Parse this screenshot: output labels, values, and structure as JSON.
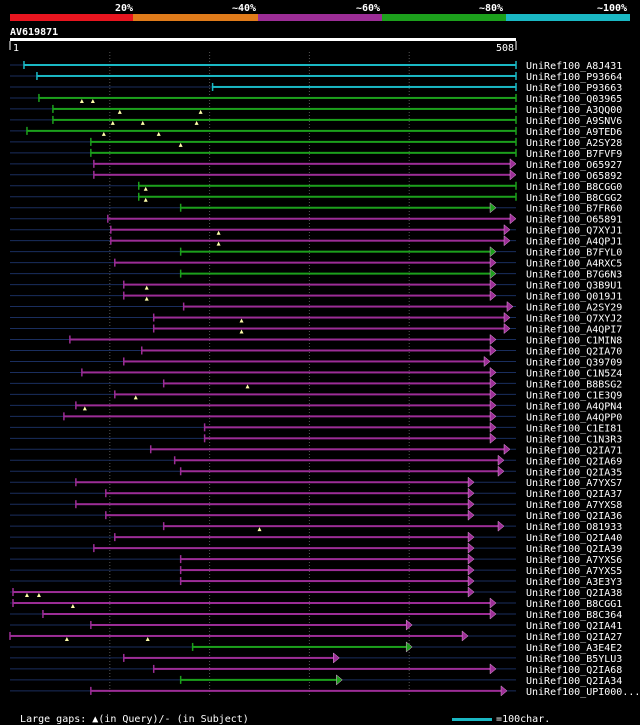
{
  "chart_data": {
    "type": "alignment",
    "query_id": "AV619871",
    "query_start": "1",
    "query_end": "508",
    "query_length": 508,
    "legend": [
      {
        "label": "20%",
        "color": "#e8151f"
      },
      {
        "label": "~40%",
        "color": "#e07b1a"
      },
      {
        "label": "~60%",
        "color": "#9c2d96"
      },
      {
        "label": "~80%",
        "color": "#1ca01c"
      },
      {
        "label": "~100%",
        "color": "#1ab8c4"
      }
    ],
    "colors": {
      "cyan": "#1ab8c4",
      "green": "#1ca01c",
      "purple": "#9c2d96",
      "track": "#1a2e5e",
      "gap": "#ffffaa",
      "axis": "#ffffff",
      "grid": "#555555"
    },
    "hits": [
      {
        "name": "UniRef100_A8J431",
        "start": 15,
        "end": 508,
        "color": "cyan",
        "arrow": false,
        "gaps": []
      },
      {
        "name": "UniRef100_P93664",
        "start": 28,
        "end": 508,
        "color": "cyan",
        "arrow": false,
        "gaps": []
      },
      {
        "name": "UniRef100_P93663",
        "start": 204,
        "end": 508,
        "color": "cyan",
        "arrow": false,
        "gaps": []
      },
      {
        "name": "UniRef100_Q03965",
        "start": 30,
        "end": 508,
        "color": "green",
        "arrow": false,
        "gaps": [
          73,
          84
        ]
      },
      {
        "name": "UniRef100_A3QQ00",
        "start": 44,
        "end": 508,
        "color": "green",
        "arrow": false,
        "gaps": [
          111,
          192
        ]
      },
      {
        "name": "UniRef100_A9SNV6",
        "start": 44,
        "end": 508,
        "color": "green",
        "arrow": false,
        "gaps": [
          104,
          134,
          188
        ]
      },
      {
        "name": "UniRef100_A9TED6",
        "start": 18,
        "end": 508,
        "color": "green",
        "arrow": false,
        "gaps": [
          95,
          150
        ]
      },
      {
        "name": "UniRef100_A2SY28",
        "start": 82,
        "end": 508,
        "color": "green",
        "arrow": false,
        "gaps": [
          172
        ]
      },
      {
        "name": "UniRef100_B7FVF9",
        "start": 82,
        "end": 508,
        "color": "green",
        "arrow": false,
        "gaps": []
      },
      {
        "name": "UniRef100_O65927",
        "start": 85,
        "end": 508,
        "color": "purple",
        "arrow": true,
        "gaps": []
      },
      {
        "name": "UniRef100_O65892",
        "start": 85,
        "end": 508,
        "color": "purple",
        "arrow": true,
        "gaps": []
      },
      {
        "name": "UniRef100_B8CGG0",
        "start": 130,
        "end": 508,
        "color": "green",
        "arrow": false,
        "gaps": [
          137
        ]
      },
      {
        "name": "UniRef100_B8CGG2",
        "start": 130,
        "end": 508,
        "color": "green",
        "arrow": false,
        "gaps": [
          137
        ]
      },
      {
        "name": "UniRef100_B7FR60",
        "start": 172,
        "end": 488,
        "color": "green",
        "arrow": true,
        "gaps": []
      },
      {
        "name": "UniRef100_O65891",
        "start": 99,
        "end": 508,
        "color": "purple",
        "arrow": true,
        "gaps": []
      },
      {
        "name": "UniRef100_Q7XYJ1",
        "start": 102,
        "end": 502,
        "color": "purple",
        "arrow": true,
        "gaps": [
          210
        ]
      },
      {
        "name": "UniRef100_A4QPJ1",
        "start": 102,
        "end": 502,
        "color": "purple",
        "arrow": true,
        "gaps": [
          210
        ]
      },
      {
        "name": "UniRef100_B7FYL0",
        "start": 172,
        "end": 488,
        "color": "green",
        "arrow": true,
        "gaps": []
      },
      {
        "name": "UniRef100_A4RXC5",
        "start": 106,
        "end": 488,
        "color": "purple",
        "arrow": true,
        "gaps": []
      },
      {
        "name": "UniRef100_B7G6N3",
        "start": 172,
        "end": 488,
        "color": "green",
        "arrow": true,
        "gaps": []
      },
      {
        "name": "UniRef100_Q3B9U1",
        "start": 115,
        "end": 488,
        "color": "purple",
        "arrow": true,
        "gaps": [
          138
        ]
      },
      {
        "name": "UniRef100_Q019J1",
        "start": 115,
        "end": 488,
        "color": "purple",
        "arrow": true,
        "gaps": [
          138
        ]
      },
      {
        "name": "UniRef100_A2SY29",
        "start": 175,
        "end": 505,
        "color": "purple",
        "arrow": true,
        "gaps": []
      },
      {
        "name": "UniRef100_Q7XYJ2",
        "start": 145,
        "end": 502,
        "color": "purple",
        "arrow": true,
        "gaps": [
          233
        ]
      },
      {
        "name": "UniRef100_A4QPI7",
        "start": 145,
        "end": 502,
        "color": "purple",
        "arrow": true,
        "gaps": [
          233
        ]
      },
      {
        "name": "UniRef100_C1MIN8",
        "start": 61,
        "end": 488,
        "color": "purple",
        "arrow": true,
        "gaps": []
      },
      {
        "name": "UniRef100_Q2IA70",
        "start": 133,
        "end": 488,
        "color": "purple",
        "arrow": true,
        "gaps": []
      },
      {
        "name": "UniRef100_Q39709",
        "start": 115,
        "end": 482,
        "color": "purple",
        "arrow": true,
        "gaps": []
      },
      {
        "name": "UniRef100_C1N5Z4",
        "start": 73,
        "end": 488,
        "color": "purple",
        "arrow": true,
        "gaps": []
      },
      {
        "name": "UniRef100_B8BSG2",
        "start": 155,
        "end": 488,
        "color": "purple",
        "arrow": true,
        "gaps": [
          239
        ]
      },
      {
        "name": "UniRef100_C1E3Q9",
        "start": 106,
        "end": 488,
        "color": "purple",
        "arrow": true,
        "gaps": [
          127
        ]
      },
      {
        "name": "UniRef100_A4QPN4",
        "start": 67,
        "end": 488,
        "color": "purple",
        "arrow": true,
        "gaps": [
          76
        ]
      },
      {
        "name": "UniRef100_A4QPP0",
        "start": 55,
        "end": 488,
        "color": "purple",
        "arrow": true,
        "gaps": []
      },
      {
        "name": "UniRef100_C1EI81",
        "start": 196,
        "end": 488,
        "color": "purple",
        "arrow": true,
        "gaps": []
      },
      {
        "name": "UniRef100_C1N3R3",
        "start": 196,
        "end": 488,
        "color": "purple",
        "arrow": true,
        "gaps": []
      },
      {
        "name": "UniRef100_Q2IA71",
        "start": 142,
        "end": 502,
        "color": "purple",
        "arrow": true,
        "gaps": []
      },
      {
        "name": "UniRef100_Q2IA69",
        "start": 166,
        "end": 496,
        "color": "purple",
        "arrow": true,
        "gaps": []
      },
      {
        "name": "UniRef100_Q2IA35",
        "start": 172,
        "end": 496,
        "color": "purple",
        "arrow": true,
        "gaps": []
      },
      {
        "name": "UniRef100_A7YXS7",
        "start": 67,
        "end": 466,
        "color": "purple",
        "arrow": true,
        "gaps": []
      },
      {
        "name": "UniRef100_Q2IA37",
        "start": 97,
        "end": 466,
        "color": "purple",
        "arrow": true,
        "gaps": []
      },
      {
        "name": "UniRef100_A7YXS8",
        "start": 67,
        "end": 466,
        "color": "purple",
        "arrow": true,
        "gaps": []
      },
      {
        "name": "UniRef100_Q2IA36",
        "start": 97,
        "end": 466,
        "color": "purple",
        "arrow": true,
        "gaps": []
      },
      {
        "name": "UniRef100_O81933",
        "start": 155,
        "end": 496,
        "color": "purple",
        "arrow": true,
        "gaps": [
          251
        ]
      },
      {
        "name": "UniRef100_Q2IA40",
        "start": 106,
        "end": 466,
        "color": "purple",
        "arrow": true,
        "gaps": []
      },
      {
        "name": "UniRef100_Q2IA39",
        "start": 85,
        "end": 466,
        "color": "purple",
        "arrow": true,
        "gaps": []
      },
      {
        "name": "UniRef100_A7YXS6",
        "start": 172,
        "end": 466,
        "color": "purple",
        "arrow": true,
        "gaps": []
      },
      {
        "name": "UniRef100_A7YXS5",
        "start": 172,
        "end": 466,
        "color": "purple",
        "arrow": true,
        "gaps": []
      },
      {
        "name": "UniRef100_A3E3Y3",
        "start": 172,
        "end": 466,
        "color": "purple",
        "arrow": true,
        "gaps": []
      },
      {
        "name": "UniRef100_Q2IA38",
        "start": 4,
        "end": 466,
        "color": "purple",
        "arrow": true,
        "gaps": [
          18,
          30
        ]
      },
      {
        "name": "UniRef100_B8CGG1",
        "start": 4,
        "end": 488,
        "color": "purple",
        "arrow": true,
        "gaps": [
          64
        ]
      },
      {
        "name": "UniRef100_B8C364",
        "start": 34,
        "end": 488,
        "color": "purple",
        "arrow": true,
        "gaps": []
      },
      {
        "name": "UniRef100_Q2IA41",
        "start": 82,
        "end": 404,
        "color": "purple",
        "arrow": true,
        "gaps": []
      },
      {
        "name": "UniRef100_Q2IA27",
        "start": 1,
        "end": 460,
        "color": "purple",
        "arrow": true,
        "gaps": [
          58,
          139
        ]
      },
      {
        "name": "UniRef100_A3E4E2",
        "start": 184,
        "end": 404,
        "color": "green",
        "arrow": true,
        "gaps": []
      },
      {
        "name": "UniRef100_B5YLU3",
        "start": 115,
        "end": 331,
        "color": "purple",
        "arrow": true,
        "gaps": []
      },
      {
        "name": "UniRef100_Q2IA68",
        "start": 145,
        "end": 488,
        "color": "purple",
        "arrow": true,
        "gaps": []
      },
      {
        "name": "UniRef100_Q2IA34",
        "start": 172,
        "end": 334,
        "color": "green",
        "arrow": true,
        "gaps": []
      },
      {
        "name": "UniRef100_UPI000...",
        "start": 82,
        "end": 499,
        "color": "purple",
        "arrow": true,
        "gaps": []
      }
    ]
  },
  "footer": {
    "gaps_label": "Large gaps: ▲(in Query)/- (in Subject)",
    "scale_label": "=100char."
  }
}
